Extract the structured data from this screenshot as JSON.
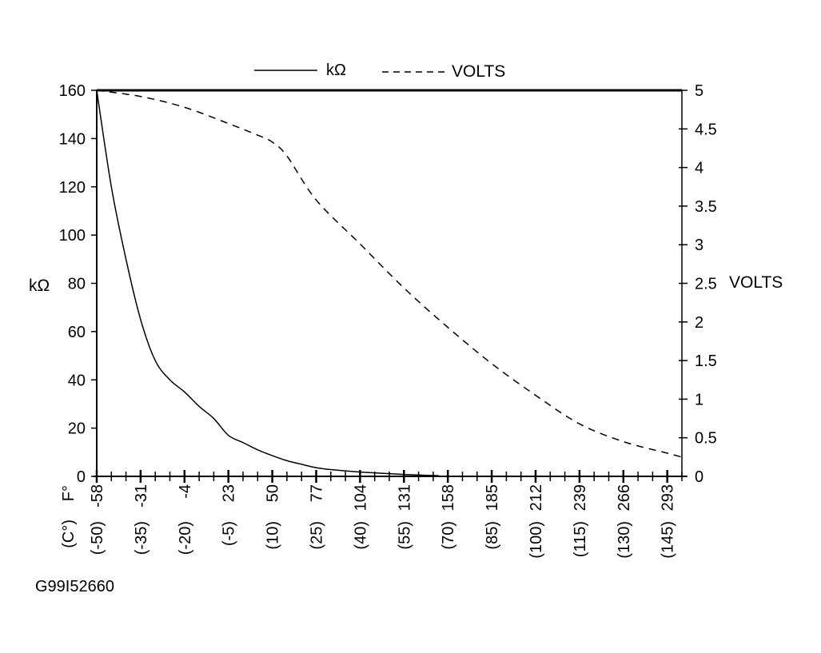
{
  "chart_data": {
    "type": "line",
    "figure_id": "G99I52660",
    "legend": {
      "placement": "top",
      "entries": [
        "kΩ",
        "VOLTS"
      ]
    },
    "x_axis": {
      "unit_label_c": "(C°)",
      "unit_label_f": "F°",
      "range_c": [
        -50,
        150
      ],
      "ticks_c": [
        "(-50)",
        "(-35)",
        "(-20)",
        "(-5)",
        "(10)",
        "(25)",
        "(40)",
        "(55)",
        "(70)",
        "(85)",
        "(100)",
        "(115)",
        "(130)",
        "(145)"
      ],
      "ticks_f": [
        "-58",
        "-31",
        "-4",
        "23",
        "50",
        "77",
        "104",
        "131",
        "158",
        "185",
        "212",
        "239",
        "266",
        "293"
      ],
      "tick_values_c": [
        -50,
        -35,
        -20,
        -5,
        10,
        25,
        40,
        55,
        70,
        85,
        100,
        115,
        130,
        145
      ]
    },
    "y_left": {
      "label": "kΩ",
      "range": [
        0,
        160
      ],
      "ticks": [
        "0",
        "20",
        "40",
        "60",
        "80",
        "100",
        "120",
        "140",
        "160"
      ]
    },
    "y_right": {
      "label": "VOLTS",
      "range": [
        0,
        5
      ],
      "ticks": [
        "0",
        "0.5",
        "1",
        "1.5",
        "2",
        "2.5",
        "3",
        "3.5",
        "4",
        "4.5",
        "5"
      ]
    },
    "series": [
      {
        "name": "kΩ",
        "axis": "left",
        "style": "solid",
        "x": [
          -50,
          -45,
          -40,
          -35,
          -30,
          -25,
          -20,
          -15,
          -10,
          -5,
          0,
          5,
          10,
          15,
          20,
          25,
          30,
          40,
          55,
          67
        ],
        "y": [
          160,
          120,
          90,
          65,
          48,
          40,
          35,
          29,
          24,
          17,
          14,
          11,
          8.6,
          6.5,
          5,
          3.6,
          2.8,
          1.8,
          0.8,
          0.3
        ]
      },
      {
        "name": "VOLTS",
        "axis": "right",
        "style": "dashed",
        "x": [
          -50,
          -35,
          -20,
          -5,
          5,
          10,
          15,
          25,
          40,
          55,
          70,
          85,
          100,
          115,
          130,
          145,
          150
        ],
        "y": [
          5,
          4.92,
          4.78,
          4.57,
          4.42,
          4.33,
          4.15,
          3.58,
          3.01,
          2.44,
          1.93,
          1.46,
          1.05,
          0.68,
          0.45,
          0.3,
          0.25
        ]
      }
    ]
  }
}
